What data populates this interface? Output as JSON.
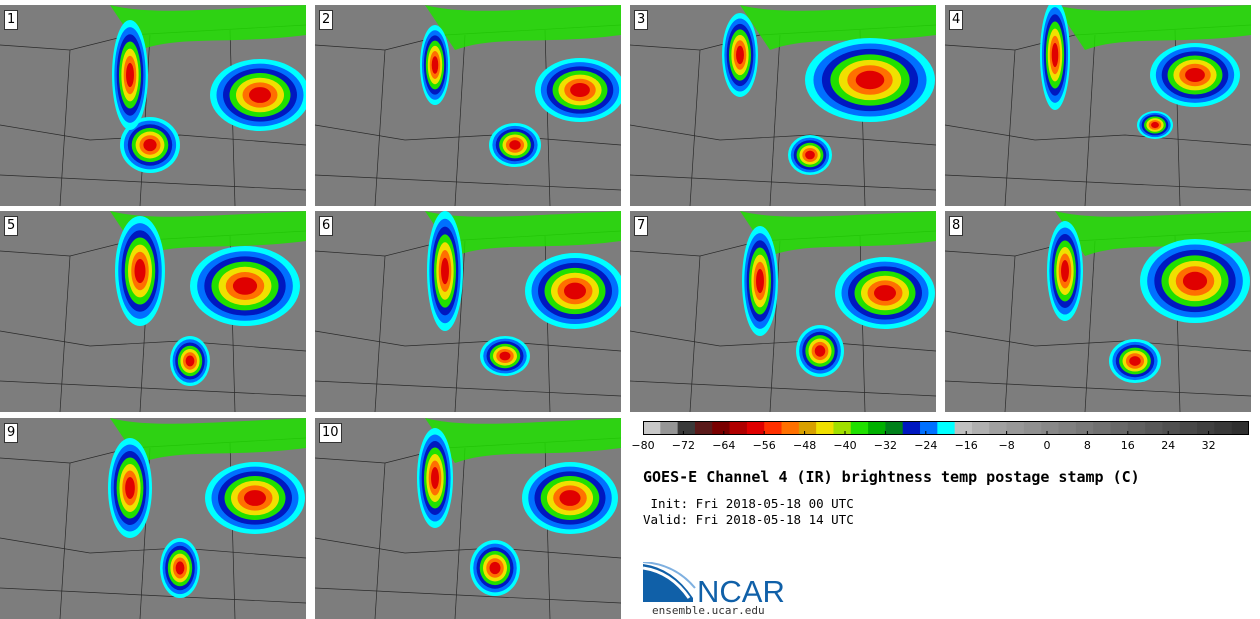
{
  "panels": [
    "1",
    "2",
    "3",
    "4",
    "5",
    "6",
    "7",
    "8",
    "9",
    "10"
  ],
  "colorbar": {
    "colors": [
      "#c8c8c8",
      "#969696",
      "#3a3a3a",
      "#5a1a1a",
      "#7a0000",
      "#b00000",
      "#e00000",
      "#ff3000",
      "#ff7000",
      "#d8a000",
      "#f0e000",
      "#a0e000",
      "#20e000",
      "#00b000",
      "#00801a",
      "#0018c0",
      "#0070ff",
      "#00ffff",
      "#c0c0c0",
      "#b0b0b0",
      "#a0a0a0",
      "#989898",
      "#909090",
      "#888888",
      "#808080",
      "#787878",
      "#707070",
      "#686868",
      "#606060",
      "#585858",
      "#505050",
      "#484848",
      "#404040",
      "#383838",
      "#303030"
    ],
    "min": -80,
    "max": 40,
    "tick_labels": [
      "−80",
      "−72",
      "−64",
      "−56",
      "−48",
      "−40",
      "−32",
      "−24",
      "−16",
      "−8",
      "0",
      "8",
      "16",
      "24",
      "32"
    ],
    "tick_values": [
      -80,
      -72,
      -64,
      -56,
      -48,
      -40,
      -32,
      -24,
      -16,
      -8,
      0,
      8,
      16,
      24,
      32
    ]
  },
  "title": "GOES-E Channel 4 (IR) brightness temp postage stamp (C)",
  "init": " Init: Fri 2018-05-18 00 UTC",
  "valid": "Valid: Fri 2018-05-18 14 UTC",
  "logo": {
    "text": "NCAR",
    "url": "ensemble.ucar.edu",
    "color": "#1060a8"
  }
}
